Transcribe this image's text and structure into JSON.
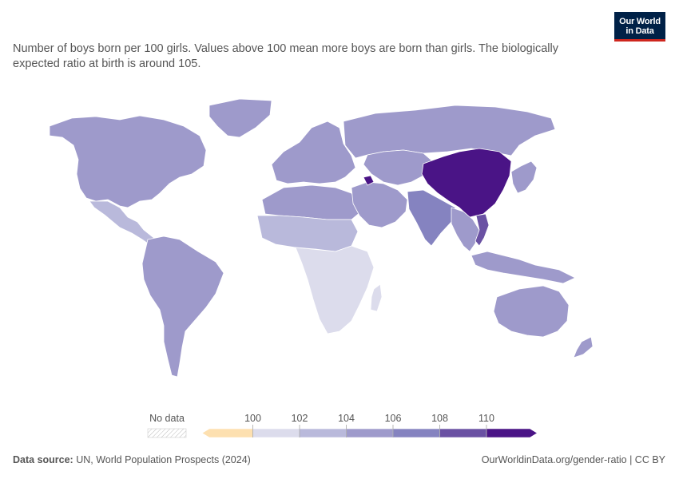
{
  "subtitle": "Number of boys born per 100 girls. Values above 100 mean more boys are born than girls. The biologically expected ratio at birth is around 105.",
  "logo": {
    "line1": "Our World",
    "line2": "in Data"
  },
  "legend": {
    "no_data_label": "No data",
    "ticks": [
      "100",
      "102",
      "104",
      "106",
      "108",
      "110"
    ],
    "bins": [
      {
        "range": "<100",
        "color": "#fde0b0"
      },
      {
        "range": "100-102",
        "color": "#dcdcec"
      },
      {
        "range": "102-104",
        "color": "#b9b9db"
      },
      {
        "range": "104-106",
        "color": "#9e9acb"
      },
      {
        "range": "106-108",
        "color": "#8583c0"
      },
      {
        "range": "108-110",
        "color": "#6a51a3"
      },
      {
        "range": ">110",
        "color": "#4a1486"
      }
    ]
  },
  "map_regions": {
    "north-america": "104-106",
    "mexico-central-america": "102-104",
    "south-america": "104-106",
    "west-africa": "102-104",
    "central-south-africa": "100-102",
    "north-africa": "104-106",
    "europe": "104-106",
    "russia": "104-106",
    "middle-east": "104-106",
    "central-asia": "104-106",
    "south-asia": "106-108",
    "china": ">110",
    "southeast-asia": "104-106",
    "vietnam": "108-110",
    "japan-korea": "104-106",
    "australia": "104-106",
    "azerbaijan": ">110"
  },
  "footer": {
    "source_label": "Data source:",
    "source_text": " UN, World Population Prospects (2024)",
    "url": "OurWorldinData.org/gender-ratio | CC BY"
  }
}
